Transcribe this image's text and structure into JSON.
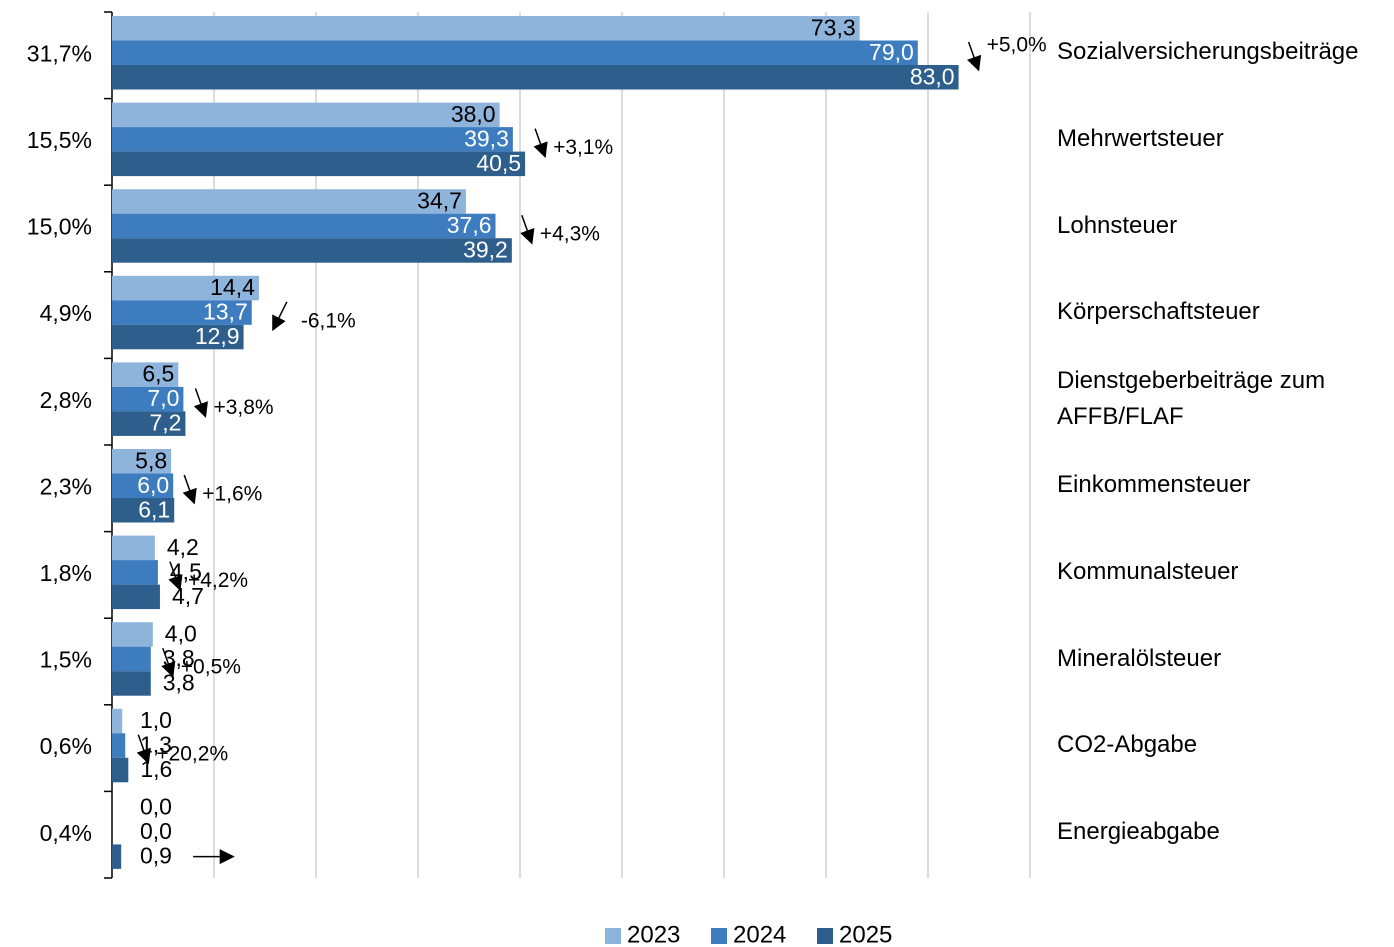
{
  "chart_data": {
    "type": "hbar",
    "categories": [
      "Sozialversicherungsbeiträge",
      "Mehrwertsteuer",
      "Lohnsteuer",
      "Körperschaftsteuer",
      "Dienstgeberbeiträge zum\nAFFB/FLAF",
      "Einkommensteuer",
      "Kommunalsteuer",
      "Mineralölsteuer",
      "CO2-Abgabe",
      "Energieabgabe"
    ],
    "shares": [
      "31,7%",
      "15,5%",
      "15,0%",
      "4,9%",
      "2,8%",
      "2,3%",
      "1,8%",
      "1,5%",
      "0,6%",
      "0,4%"
    ],
    "changes": [
      "+5,0%",
      "+3,1%",
      "+4,3%",
      "-6,1%",
      "+3,8%",
      "+1,6%",
      "+4,2%",
      "+0,5%",
      "+20,2%",
      null
    ],
    "series": [
      {
        "name": "2023",
        "color": "#8eb4dc",
        "values": [
          73.3,
          38.0,
          34.7,
          14.4,
          6.5,
          5.8,
          4.2,
          4.0,
          1.0,
          0.0
        ],
        "value_labels": [
          "73,3",
          "38,0",
          "34,7",
          "14,4",
          "6,5",
          "5,8",
          "4,2",
          "4,0",
          "1,0",
          "0,0"
        ]
      },
      {
        "name": "2024",
        "color": "#3d7dbf",
        "values": [
          79.0,
          39.3,
          37.6,
          13.7,
          7.0,
          6.0,
          4.5,
          3.8,
          1.3,
          0.0
        ],
        "value_labels": [
          "79,0",
          "39,3",
          "37,6",
          "13,7",
          "7,0",
          "6,0",
          "4,5",
          "3,8",
          "1,3",
          "0,0"
        ]
      },
      {
        "name": "2025",
        "color": "#2e5e8c",
        "values": [
          83.0,
          40.5,
          39.2,
          12.9,
          7.2,
          6.1,
          4.7,
          3.8,
          1.6,
          0.9
        ],
        "value_labels": [
          "83,0",
          "40,5",
          "39,2",
          "12,9",
          "7,2",
          "6,1",
          "4,7",
          "3,8",
          "1,6",
          "0,9"
        ]
      }
    ],
    "xlim": [
      0,
      90
    ],
    "xticks": [
      0,
      10,
      20,
      30,
      40,
      50,
      60,
      70,
      80,
      90
    ],
    "grid": true
  }
}
